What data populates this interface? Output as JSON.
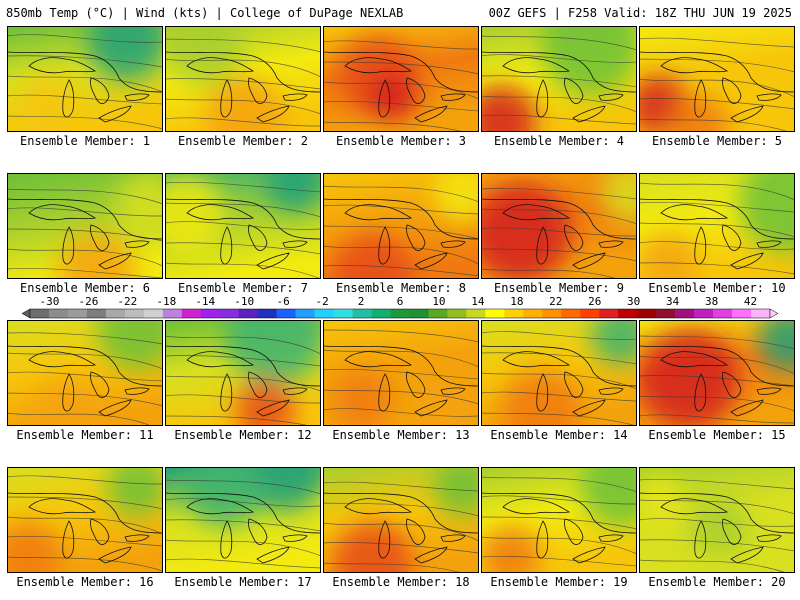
{
  "header": {
    "left": "850mb Temp (°C) | Wind (kts) | College of DuPage NEXLAB",
    "right": "00Z GEFS | F258 Valid: 18Z THU JUN 19 2025"
  },
  "panels": [
    {
      "label": "Ensemble Member: 1"
    },
    {
      "label": "Ensemble Member: 2"
    },
    {
      "label": "Ensemble Member: 3"
    },
    {
      "label": "Ensemble Member: 4"
    },
    {
      "label": "Ensemble Member: 5"
    },
    {
      "label": "Ensemble Member: 6"
    },
    {
      "label": "Ensemble Member: 7"
    },
    {
      "label": "Ensemble Member: 8"
    },
    {
      "label": "Ensemble Member: 9"
    },
    {
      "label": "Ensemble Member: 10"
    },
    {
      "label": "Ensemble Member: 11"
    },
    {
      "label": "Ensemble Member: 12"
    },
    {
      "label": "Ensemble Member: 13"
    },
    {
      "label": "Ensemble Member: 14"
    },
    {
      "label": "Ensemble Member: 15"
    },
    {
      "label": "Ensemble Member: 16"
    },
    {
      "label": "Ensemble Member: 17"
    },
    {
      "label": "Ensemble Member: 18"
    },
    {
      "label": "Ensemble Member: 19"
    },
    {
      "label": "Ensemble Member: 20"
    }
  ],
  "colorbar": {
    "labels": [
      "-30",
      "-26",
      "-22",
      "-18",
      "-14",
      "-10",
      "-6",
      "-2",
      "2",
      "6",
      "10",
      "14",
      "18",
      "22",
      "26",
      "30",
      "34",
      "38",
      "42"
    ],
    "colors": [
      "#6e6e6e",
      "#8c8c8c",
      "#9b9b9b",
      "#7d7d7d",
      "#a8a8a8",
      "#bcbcbc",
      "#d0d0d0",
      "#c080e0",
      "#d020d0",
      "#a020f0",
      "#8a2be2",
      "#5a20c0",
      "#2030c0",
      "#1e60ff",
      "#1ea0ff",
      "#20d0ff",
      "#30e0e0",
      "#20c0a0",
      "#10b070",
      "#1a9a3a",
      "#209030",
      "#5aaa20",
      "#90c020",
      "#c8d820",
      "#ffff00",
      "#ffd000",
      "#ffb000",
      "#ff9000",
      "#ff6a00",
      "#ff4000",
      "#e02020",
      "#c00000",
      "#a00000",
      "#901030",
      "#a01080",
      "#c020c0",
      "#e040e0",
      "#ff70ff",
      "#ffb0ff"
    ]
  }
}
